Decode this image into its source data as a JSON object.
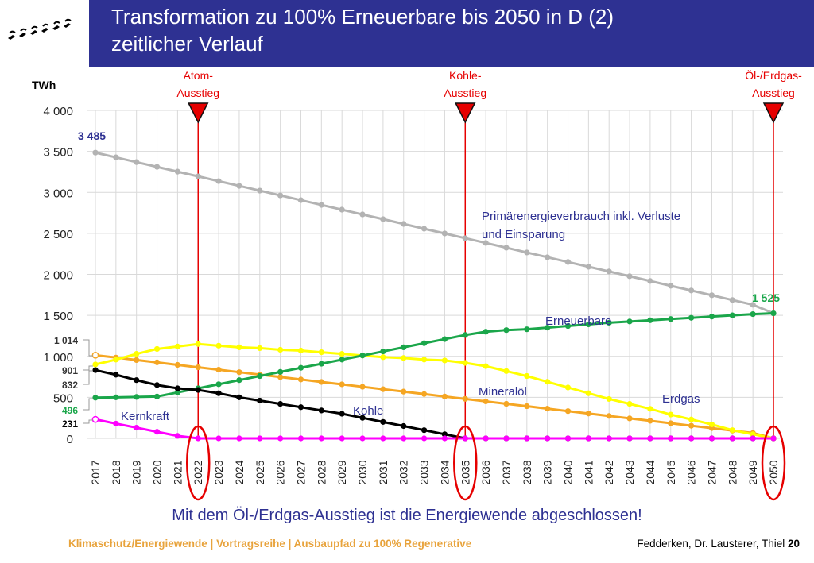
{
  "header": {
    "title_line1": "Transformation zu 100% Erneuerbare bis 2050 in D  (2)",
    "title_line2": "zeitlicher Verlauf"
  },
  "footer": {
    "left": "Klimaschutz/Energiewende | Vortragsreihe | Ausbaupfad zu 100% Regenerative",
    "right": "Fedderken, Dr. Lausterer, Thiel ",
    "page": "20"
  },
  "conclusion": "Mit dem Öl-/Erdgas-Ausstieg ist die Energiewende abgeschlossen!",
  "colors": {
    "title_bar": "#2e3192",
    "grid": "#d9d9d9",
    "marker": "#e60000",
    "primary": "#b3b3b3",
    "renewables": "#1aa64a",
    "gas": "#ffff00",
    "oil": "#f5a623",
    "coal": "#000000",
    "nuclear": "#ff00ff"
  },
  "chart_data": {
    "type": "line",
    "ylabel": "TWh",
    "ylim": [
      0,
      4000
    ],
    "yticks": [
      "0",
      "500",
      "1 000",
      "1 500",
      "2 000",
      "2 500",
      "3 000",
      "3 500",
      "4 000"
    ],
    "x": [
      2017,
      2018,
      2019,
      2020,
      2021,
      2022,
      2023,
      2024,
      2025,
      2026,
      2027,
      2028,
      2029,
      2030,
      2031,
      2032,
      2033,
      2034,
      2035,
      2036,
      2037,
      2038,
      2039,
      2040,
      2041,
      2042,
      2043,
      2044,
      2045,
      2046,
      2047,
      2048,
      2049,
      2050
    ],
    "highlighted_years": [
      2022,
      2035,
      2050
    ],
    "grid": true,
    "series": [
      {
        "key": "primary",
        "name": "Primärenergieverbrauch inkl. Verluste und Einsparung",
        "values": [
          3485,
          3427,
          3369,
          3311,
          3253,
          3195,
          3137,
          3079,
          3021,
          2963,
          2905,
          2847,
          2789,
          2731,
          2673,
          2615,
          2557,
          2499,
          2441,
          2383,
          2325,
          2267,
          2209,
          2151,
          2093,
          2035,
          1977,
          1919,
          1861,
          1803,
          1745,
          1687,
          1629,
          1525
        ]
      },
      {
        "key": "renewables",
        "name": "Erneuerbare",
        "values": [
          496,
          500,
          505,
          510,
          560,
          610,
          660,
          710,
          760,
          810,
          860,
          910,
          960,
          1010,
          1060,
          1110,
          1160,
          1210,
          1260,
          1300,
          1320,
          1330,
          1350,
          1370,
          1390,
          1410,
          1425,
          1440,
          1455,
          1470,
          1485,
          1500,
          1515,
          1525
        ]
      },
      {
        "key": "gas",
        "name": "Erdgas",
        "values": [
          901,
          960,
          1030,
          1090,
          1120,
          1150,
          1130,
          1110,
          1100,
          1080,
          1070,
          1050,
          1030,
          1010,
          990,
          980,
          960,
          950,
          920,
          880,
          820,
          760,
          690,
          620,
          550,
          480,
          420,
          360,
          290,
          230,
          170,
          100,
          50,
          0
        ]
      },
      {
        "key": "oil",
        "name": "Mineralöl",
        "values": [
          1014,
          985,
          955,
          926,
          896,
          866,
          837,
          807,
          777,
          748,
          718,
          688,
          659,
          629,
          599,
          570,
          540,
          510,
          481,
          451,
          421,
          392,
          362,
          332,
          303,
          273,
          243,
          214,
          184,
          154,
          125,
          95,
          65,
          0
        ]
      },
      {
        "key": "coal",
        "name": "Kohle",
        "values": [
          832,
          776,
          710,
          650,
          610,
          590,
          550,
          500,
          460,
          420,
          380,
          340,
          300,
          250,
          200,
          150,
          100,
          50,
          0,
          0,
          0,
          0,
          0,
          0,
          0,
          0,
          0,
          0,
          0,
          0,
          0,
          0,
          0,
          0
        ]
      },
      {
        "key": "nuclear",
        "name": "Kernkraft",
        "values": [
          231,
          180,
          130,
          80,
          30,
          0,
          0,
          0,
          0,
          0,
          0,
          0,
          0,
          0,
          0,
          0,
          0,
          0,
          0,
          0,
          0,
          0,
          0,
          0,
          0,
          0,
          0,
          0,
          0,
          0,
          0,
          0,
          0,
          0
        ]
      }
    ],
    "annotations": {
      "start_primary": "3 485",
      "end_renewables": "1 525",
      "start_oil": "1 014",
      "start_gas": "901",
      "start_coal": "832",
      "start_renewables": "496",
      "start_nuclear": "231"
    },
    "phase_markers": [
      {
        "year": 2022,
        "label1": "Atom-",
        "label2": "Ausstieg"
      },
      {
        "year": 2035,
        "label1": "Kohle-",
        "label2": "Ausstieg"
      },
      {
        "year": 2050,
        "label1": "Öl-/Erdgas-",
        "label2": "Ausstieg"
      }
    ]
  }
}
